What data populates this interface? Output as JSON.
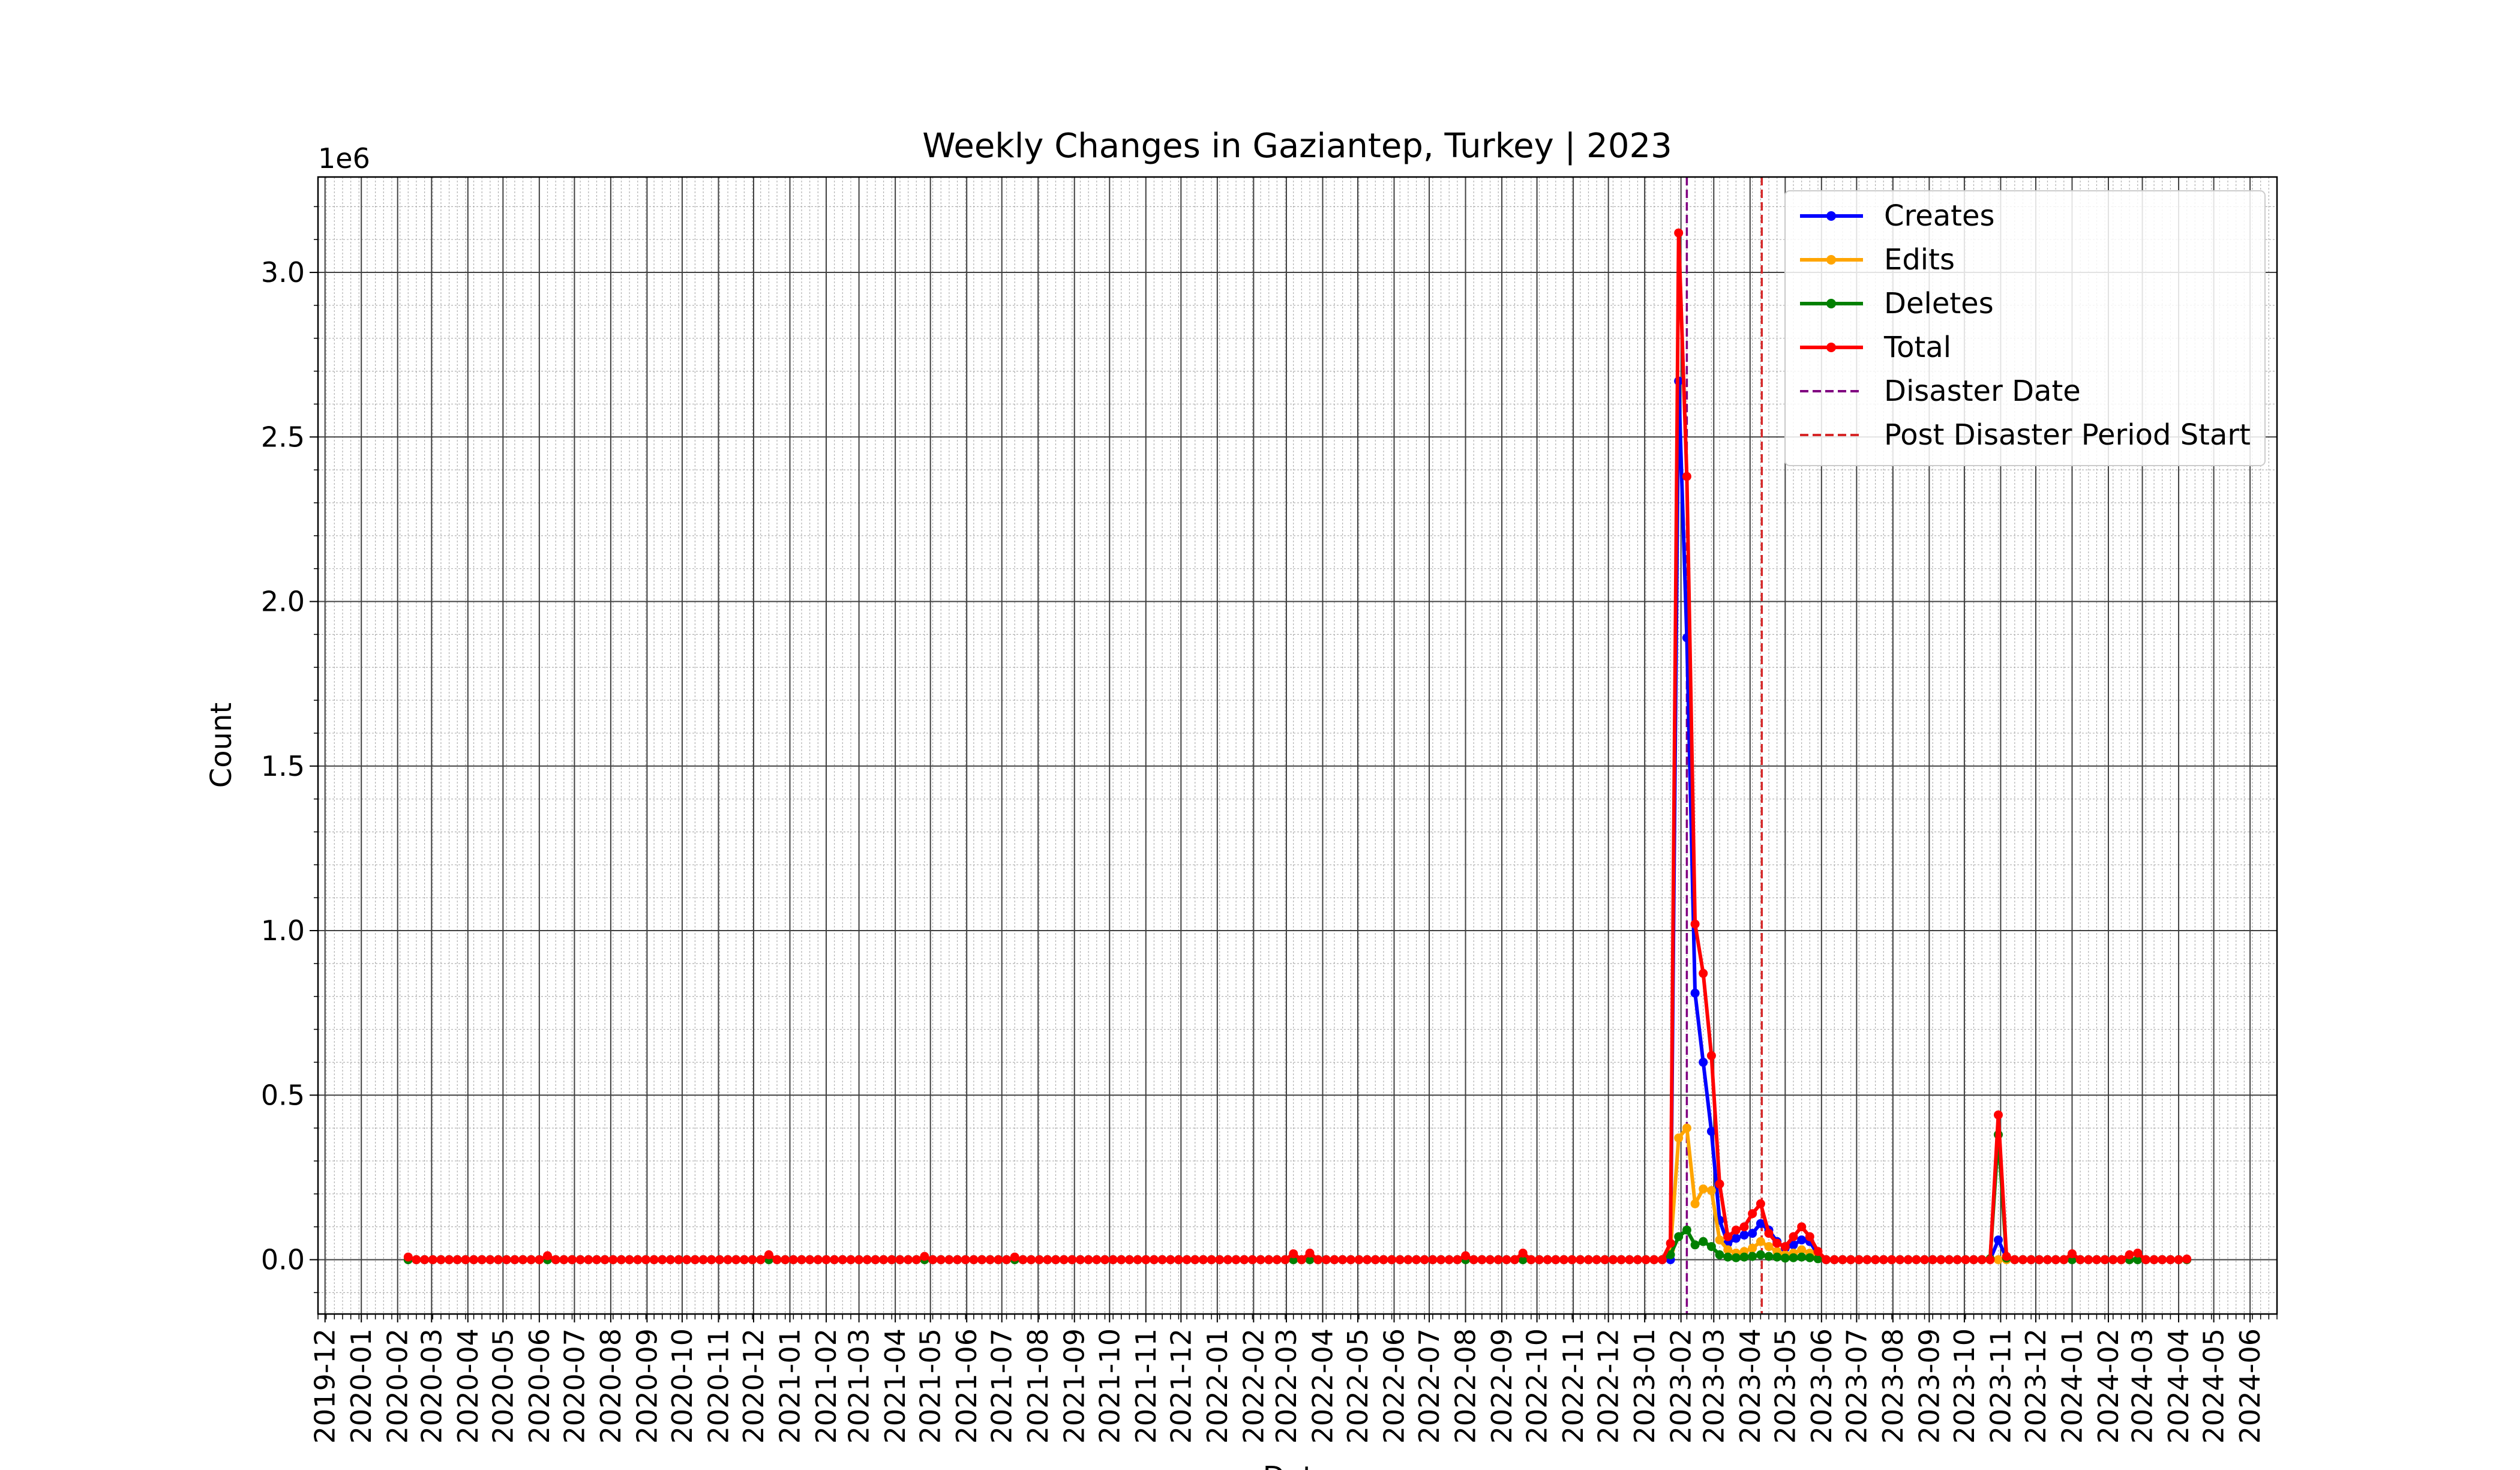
{
  "chart_data": {
    "type": "line",
    "title": "Weekly Changes in Gaziantep, Turkey | 2023",
    "xlabel": "Date",
    "ylabel": "Count",
    "y_offset_label": "1e6",
    "y_scale": 1000000,
    "xlim": [
      "2019-11-25",
      "2024-06-24"
    ],
    "ylim": [
      -165000,
      3290000
    ],
    "yticks": [
      0,
      500000,
      1000000,
      1500000,
      2000000,
      2500000,
      3000000
    ],
    "ytick_labels": [
      "0.0",
      "0.5",
      "1.0",
      "1.5",
      "2.0",
      "2.5",
      "3.0"
    ],
    "xticks": [
      "2019-12-01",
      "2020-01-01",
      "2020-02-01",
      "2020-03-01",
      "2020-04-01",
      "2020-05-01",
      "2020-06-01",
      "2020-07-01",
      "2020-08-01",
      "2020-09-01",
      "2020-10-01",
      "2020-11-01",
      "2020-12-01",
      "2021-01-01",
      "2021-02-01",
      "2021-03-01",
      "2021-04-01",
      "2021-05-01",
      "2021-06-01",
      "2021-07-01",
      "2021-08-01",
      "2021-09-01",
      "2021-10-01",
      "2021-11-01",
      "2021-12-01",
      "2022-01-01",
      "2022-02-01",
      "2022-03-01",
      "2022-04-01",
      "2022-05-01",
      "2022-06-01",
      "2022-07-01",
      "2022-08-01",
      "2022-09-01",
      "2022-10-01",
      "2022-11-01",
      "2022-12-01",
      "2023-01-01",
      "2023-02-01",
      "2023-03-01",
      "2023-04-01",
      "2023-05-01",
      "2023-06-01",
      "2023-07-01",
      "2023-08-01",
      "2023-09-01",
      "2023-10-01",
      "2023-11-01",
      "2023-12-01",
      "2024-01-01",
      "2024-02-01",
      "2024-03-01",
      "2024-04-01",
      "2024-05-01",
      "2024-06-01"
    ],
    "xtick_labels": [
      "2019-12",
      "2020-01",
      "2020-02",
      "2020-03",
      "2020-04",
      "2020-05",
      "2020-06",
      "2020-07",
      "2020-08",
      "2020-09",
      "2020-10",
      "2020-11",
      "2020-12",
      "2021-01",
      "2021-02",
      "2021-03",
      "2021-04",
      "2021-05",
      "2021-06",
      "2021-07",
      "2021-08",
      "2021-09",
      "2021-10",
      "2021-11",
      "2021-12",
      "2022-01",
      "2022-02",
      "2022-03",
      "2022-04",
      "2022-05",
      "2022-06",
      "2022-07",
      "2022-08",
      "2022-09",
      "2022-10",
      "2022-11",
      "2022-12",
      "2023-01",
      "2023-02",
      "2023-03",
      "2023-04",
      "2023-05",
      "2023-06",
      "2023-07",
      "2023-08",
      "2023-09",
      "2023-10",
      "2023-11",
      "2023-12",
      "2024-01",
      "2024-02",
      "2024-03",
      "2024-04",
      "2024-05",
      "2024-06"
    ],
    "grid": true,
    "legend_position": "top-right",
    "baseline_range": [
      "2020-02-10",
      "2024-04-08"
    ],
    "series": [
      {
        "name": "Creates",
        "color": "#0000ff",
        "points": [
          [
            "2023-01-30",
            2670000
          ],
          [
            "2023-02-06",
            1890000
          ],
          [
            "2023-02-13",
            810000
          ],
          [
            "2023-02-20",
            600000
          ],
          [
            "2023-02-27",
            390000
          ],
          [
            "2023-03-06",
            120000
          ],
          [
            "2023-03-13",
            50000
          ],
          [
            "2023-03-20",
            65000
          ],
          [
            "2023-03-27",
            75000
          ],
          [
            "2023-04-03",
            80000
          ],
          [
            "2023-04-10",
            110000
          ],
          [
            "2023-04-17",
            90000
          ],
          [
            "2023-04-24",
            55000
          ],
          [
            "2023-05-01",
            35000
          ],
          [
            "2023-05-08",
            45000
          ],
          [
            "2023-05-15",
            60000
          ],
          [
            "2023-05-22",
            55000
          ],
          [
            "2023-05-29",
            15000
          ],
          [
            "2023-10-30",
            60000
          ],
          [
            "2023-11-06",
            5000
          ]
        ]
      },
      {
        "name": "Edits",
        "color": "#ffa500",
        "points": [
          [
            "2023-01-23",
            30000
          ],
          [
            "2023-01-30",
            370000
          ],
          [
            "2023-02-06",
            400000
          ],
          [
            "2023-02-13",
            170000
          ],
          [
            "2023-02-20",
            215000
          ],
          [
            "2023-02-27",
            210000
          ],
          [
            "2023-03-06",
            60000
          ],
          [
            "2023-03-13",
            30000
          ],
          [
            "2023-03-20",
            20000
          ],
          [
            "2023-03-27",
            25000
          ],
          [
            "2023-04-03",
            35000
          ],
          [
            "2023-04-10",
            55000
          ],
          [
            "2023-04-17",
            40000
          ],
          [
            "2023-04-24",
            25000
          ],
          [
            "2023-05-01",
            15000
          ],
          [
            "2023-05-08",
            20000
          ],
          [
            "2023-05-15",
            30000
          ],
          [
            "2023-05-22",
            20000
          ],
          [
            "2023-05-29",
            8000
          ]
        ]
      },
      {
        "name": "Deletes",
        "color": "#008000",
        "points": [
          [
            "2023-01-23",
            15000
          ],
          [
            "2023-01-30",
            70000
          ],
          [
            "2023-02-06",
            90000
          ],
          [
            "2023-02-13",
            45000
          ],
          [
            "2023-02-20",
            55000
          ],
          [
            "2023-02-27",
            40000
          ],
          [
            "2023-03-06",
            15000
          ],
          [
            "2023-03-13",
            8000
          ],
          [
            "2023-03-20",
            6000
          ],
          [
            "2023-03-27",
            8000
          ],
          [
            "2023-04-03",
            10000
          ],
          [
            "2023-04-10",
            15000
          ],
          [
            "2023-04-17",
            10000
          ],
          [
            "2023-04-24",
            8000
          ],
          [
            "2023-05-01",
            5000
          ],
          [
            "2023-05-08",
            6000
          ],
          [
            "2023-05-15",
            8000
          ],
          [
            "2023-05-22",
            6000
          ],
          [
            "2023-05-29",
            3000
          ],
          [
            "2023-10-23",
            3000
          ],
          [
            "2023-10-30",
            380000
          ],
          [
            "2023-11-06",
            5000
          ]
        ]
      },
      {
        "name": "Total",
        "color": "#ff0000",
        "points": [
          [
            "2020-02-10",
            8000
          ],
          [
            "2020-06-08",
            12000
          ],
          [
            "2020-12-14",
            15000
          ],
          [
            "2021-04-26",
            10000
          ],
          [
            "2021-07-12",
            8000
          ],
          [
            "2022-03-07",
            18000
          ],
          [
            "2022-03-21",
            20000
          ],
          [
            "2022-08-01",
            12000
          ],
          [
            "2022-09-19",
            20000
          ],
          [
            "2023-01-23",
            50000
          ],
          [
            "2023-01-30",
            3120000
          ],
          [
            "2023-02-06",
            2380000
          ],
          [
            "2023-02-13",
            1020000
          ],
          [
            "2023-02-20",
            870000
          ],
          [
            "2023-02-27",
            620000
          ],
          [
            "2023-03-06",
            230000
          ],
          [
            "2023-03-13",
            70000
          ],
          [
            "2023-03-20",
            90000
          ],
          [
            "2023-03-27",
            100000
          ],
          [
            "2023-04-03",
            140000
          ],
          [
            "2023-04-10",
            170000
          ],
          [
            "2023-04-17",
            80000
          ],
          [
            "2023-04-24",
            50000
          ],
          [
            "2023-05-01",
            40000
          ],
          [
            "2023-05-08",
            70000
          ],
          [
            "2023-05-15",
            100000
          ],
          [
            "2023-05-22",
            70000
          ],
          [
            "2023-05-29",
            25000
          ],
          [
            "2023-10-30",
            440000
          ],
          [
            "2023-11-06",
            10000
          ],
          [
            "2024-01-01",
            18000
          ],
          [
            "2024-02-19",
            15000
          ],
          [
            "2024-02-26",
            20000
          ],
          [
            "2024-04-08",
            2000
          ]
        ]
      }
    ],
    "vlines": [
      {
        "name": "Disaster Date",
        "date": "2023-02-06",
        "color": "#800080"
      },
      {
        "name": "Post Disaster Period Start",
        "date": "2023-04-11",
        "color": "#d62728"
      }
    ]
  }
}
